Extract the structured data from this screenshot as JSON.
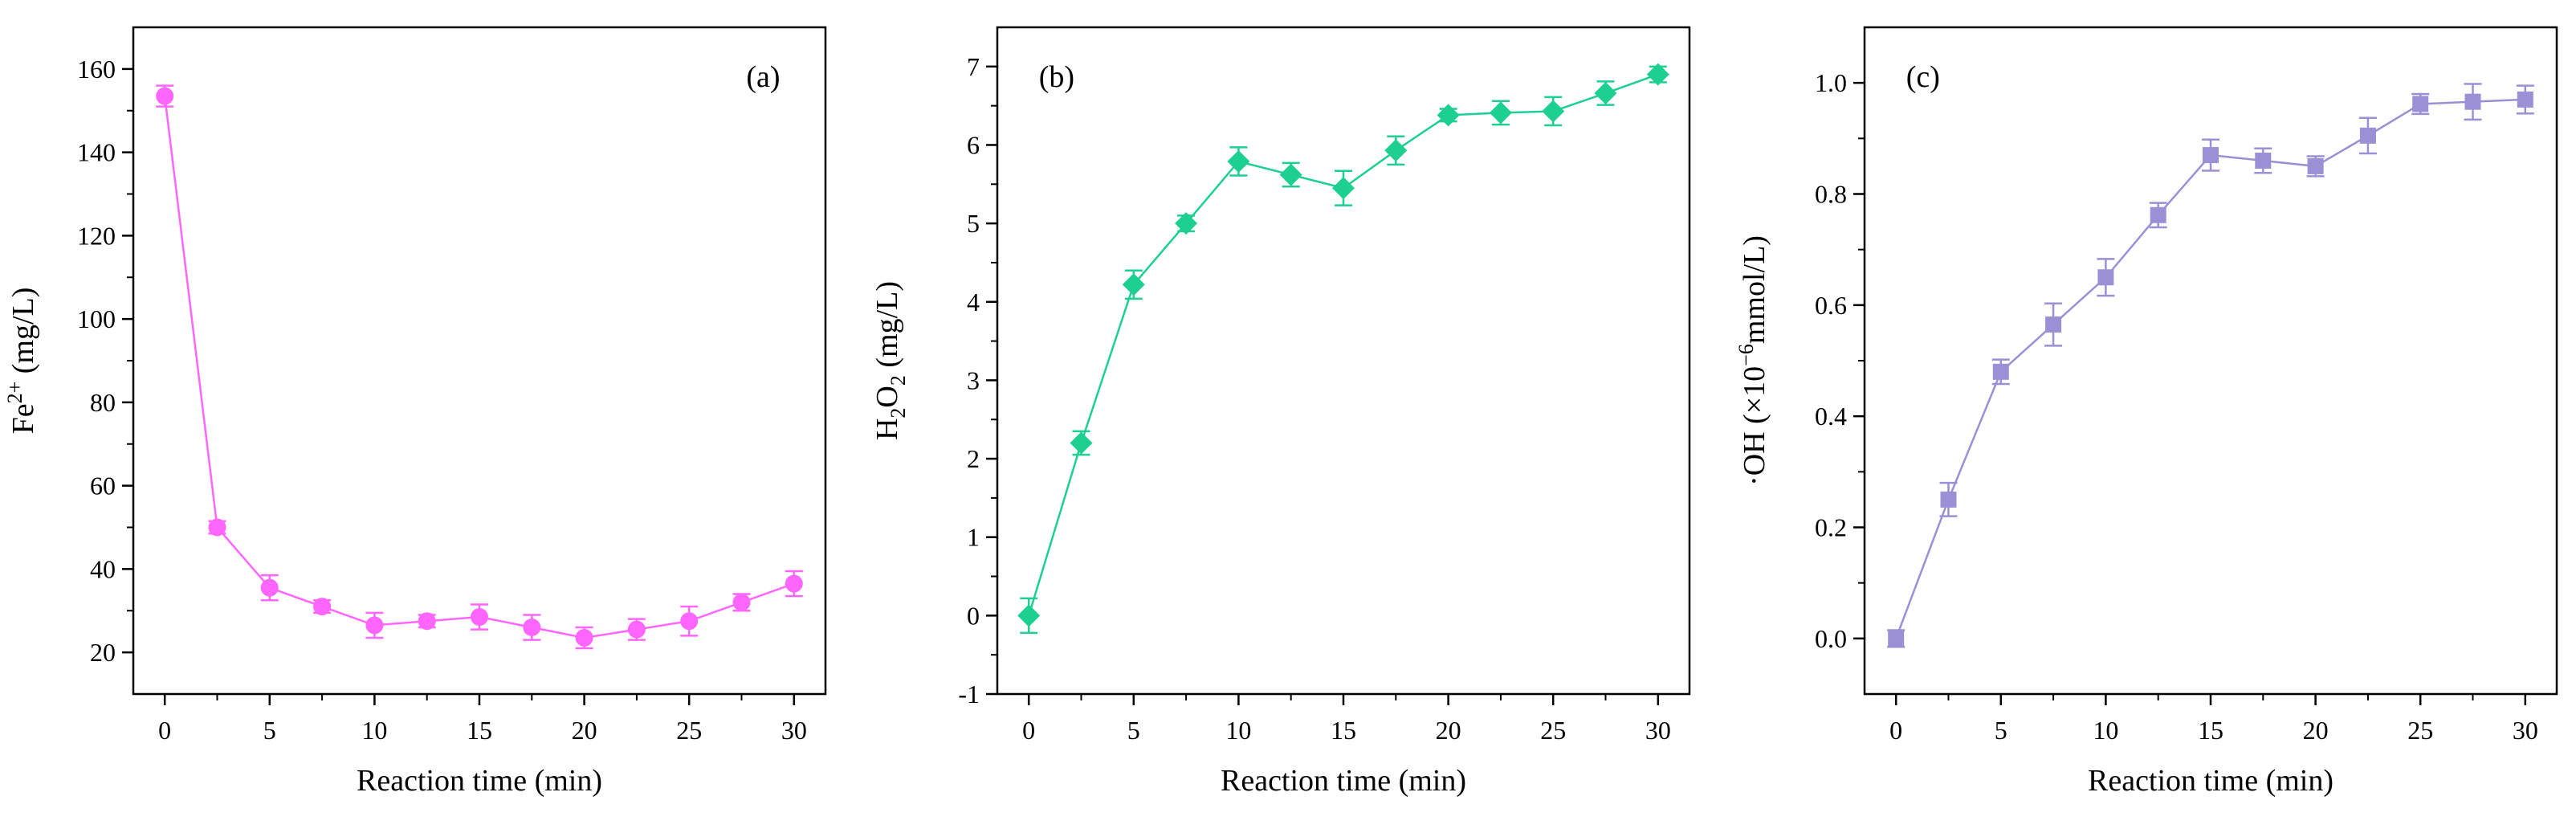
{
  "chart_data": [
    {
      "type": "line",
      "panel": "(a)",
      "color": "#ff66ff",
      "marker": "circle",
      "xlabel": "Reaction time (min)",
      "ylabel": {
        "base": "Fe",
        "sup": "2+",
        "rest": " (mg/L)"
      },
      "xlim": [
        -1.5,
        31.5
      ],
      "ylim": [
        10,
        170
      ],
      "xticks": [
        0,
        5,
        10,
        15,
        20,
        25,
        30
      ],
      "yticks": [
        20,
        40,
        60,
        80,
        100,
        120,
        140,
        160
      ],
      "ytick_labels": [
        "20",
        "40",
        "60",
        "80",
        "100",
        "120",
        "140",
        "160"
      ],
      "x": [
        0,
        2.5,
        5,
        7.5,
        10,
        12.5,
        15,
        17.5,
        20,
        22.5,
        25,
        27.5,
        30
      ],
      "y": [
        153.5,
        50,
        35.5,
        31,
        26.5,
        27.5,
        28.5,
        26,
        23.5,
        25.5,
        27.5,
        32,
        36.5
      ],
      "err": [
        2.5,
        1.5,
        3,
        1.5,
        3,
        1.5,
        3,
        3,
        2.5,
        2.5,
        3.5,
        2,
        3
      ]
    },
    {
      "type": "line",
      "panel": "(b)",
      "color": "#1ed090",
      "marker": "diamond",
      "xlabel": "Reaction time (min)",
      "ylabel": {
        "parts": [
          "H",
          "2",
          "O",
          "2",
          " (mg/L)"
        ]
      },
      "xlim": [
        -1.5,
        31.5
      ],
      "ylim": [
        -1,
        7.5
      ],
      "xticks": [
        0,
        5,
        10,
        15,
        20,
        25,
        30
      ],
      "yticks": [
        -1,
        0,
        1,
        2,
        3,
        4,
        5,
        6,
        7
      ],
      "ytick_labels": [
        "-1",
        "0",
        "1",
        "2",
        "3",
        "4",
        "5",
        "6",
        "7"
      ],
      "x": [
        0,
        2.5,
        5,
        7.5,
        10,
        12.5,
        15,
        17.5,
        20,
        22.5,
        25,
        27.5,
        30
      ],
      "y": [
        0,
        2.2,
        4.22,
        5,
        5.79,
        5.62,
        5.45,
        5.93,
        6.38,
        6.41,
        6.43,
        6.66,
        6.9
      ],
      "err": [
        0.22,
        0.15,
        0.18,
        0.1,
        0.18,
        0.15,
        0.22,
        0.18,
        0.08,
        0.15,
        0.18,
        0.15,
        0.1
      ]
    },
    {
      "type": "line",
      "panel": "(c)",
      "color": "#9b8fd6",
      "marker": "square",
      "xlabel": "Reaction time (min)",
      "ylabel": {
        "pre": "·OH (×10",
        "sup": "−6",
        "rest": "mmol/L)"
      },
      "xlim": [
        -1.5,
        31.5
      ],
      "ylim": [
        -0.1,
        1.1
      ],
      "xticks": [
        0,
        5,
        10,
        15,
        20,
        25,
        30
      ],
      "yticks": [
        0,
        0.2,
        0.4,
        0.6,
        0.8,
        1.0
      ],
      "ytick_labels": [
        "0.0",
        "0.2",
        "0.4",
        "0.6",
        "0.8",
        "1.0"
      ],
      "x": [
        0,
        2.5,
        5,
        7.5,
        10,
        12.5,
        15,
        17.5,
        20,
        22.5,
        25,
        27.5,
        30
      ],
      "y": [
        0,
        0.25,
        0.48,
        0.565,
        0.65,
        0.762,
        0.87,
        0.86,
        0.85,
        0.905,
        0.962,
        0.966,
        0.97
      ],
      "err": [
        0.015,
        0.03,
        0.022,
        0.038,
        0.033,
        0.022,
        0.028,
        0.022,
        0.018,
        0.032,
        0.018,
        0.032,
        0.025
      ]
    }
  ]
}
